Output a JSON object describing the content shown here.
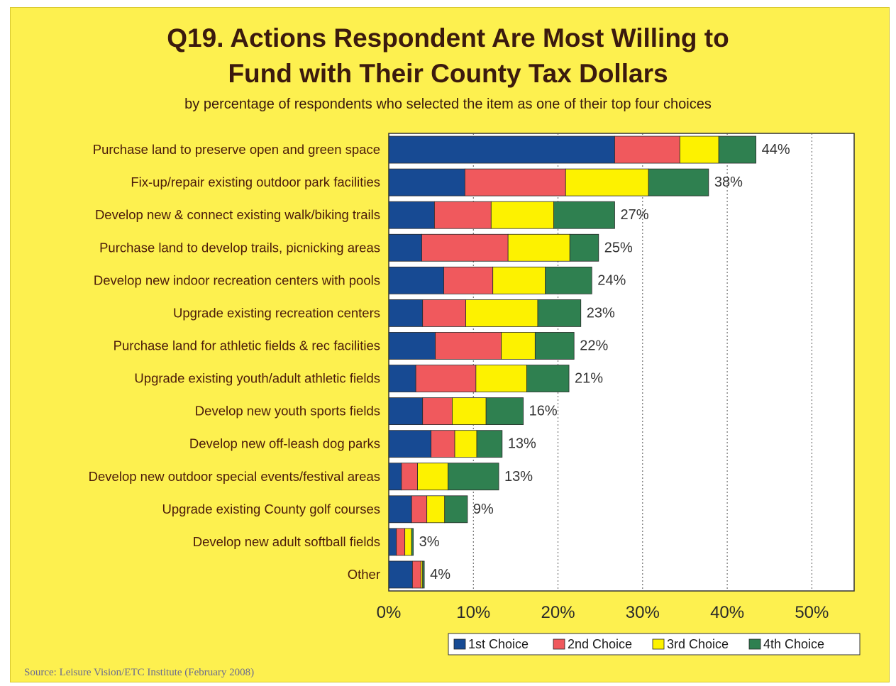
{
  "title_line1": "Q19. Actions Respondent Are Most Willing to",
  "title_line2": "Fund with Their County Tax Dollars",
  "subtitle": "by percentage of respondents who selected the item as one of their top four choices",
  "source": "Source:  Leisure Vision/ETC Institute (February 2008)",
  "colors": {
    "background": "#fdf04f",
    "first": "#174a93",
    "second": "#f0595d",
    "third": "#fdf200",
    "fourth": "#2f8050",
    "plot_bg": "#ffffff"
  },
  "chart_data": {
    "type": "bar",
    "orientation": "horizontal",
    "stacked": true,
    "categories": [
      "Purchase land to preserve open and green space",
      "Fix-up/repair existing outdoor park facilities",
      "Develop new & connect existing walk/biking trails",
      "Purchase land to develop trails, picnicking areas",
      "Develop new indoor recreation centers with pools",
      "Upgrade existing recreation centers",
      "Purchase land for athletic fields & rec facilities",
      "Upgrade existing youth/adult athletic fields",
      "Develop new youth sports fields",
      "Develop new off-leash dog parks",
      "Develop new outdoor special events/festival areas",
      "Upgrade existing County golf courses",
      "Develop new adult softball fields",
      "Other"
    ],
    "series": [
      {
        "name": "1st Choice",
        "values": [
          26.7,
          9.0,
          5.4,
          3.9,
          6.5,
          4.0,
          5.5,
          3.2,
          4.0,
          5.0,
          1.5,
          2.7,
          0.9,
          2.8
        ]
      },
      {
        "name": "2nd Choice",
        "values": [
          7.7,
          11.9,
          6.7,
          10.2,
          5.8,
          5.1,
          7.8,
          7.1,
          3.5,
          2.8,
          1.9,
          1.8,
          1.0,
          1.0
        ]
      },
      {
        "name": "3rd Choice",
        "values": [
          4.6,
          9.8,
          7.4,
          7.3,
          6.2,
          8.5,
          4.0,
          6.0,
          4.0,
          2.6,
          3.6,
          2.1,
          0.8,
          0.2
        ]
      },
      {
        "name": "4th Choice",
        "values": [
          4.4,
          7.1,
          7.2,
          3.4,
          5.5,
          5.1,
          4.6,
          5.0,
          4.4,
          3.0,
          6.0,
          2.7,
          0.2,
          0.2
        ]
      }
    ],
    "totals": [
      "44%",
      "38%",
      "27%",
      "25%",
      "24%",
      "23%",
      "22%",
      "21%",
      "16%",
      "13%",
      "13%",
      "9%",
      "3%",
      "4%"
    ],
    "x_ticks": [
      "0%",
      "10%",
      "20%",
      "30%",
      "40%",
      "50%"
    ],
    "xlim": [
      0,
      55
    ],
    "grid": "vertical dotted",
    "legend": "bottom-right"
  }
}
